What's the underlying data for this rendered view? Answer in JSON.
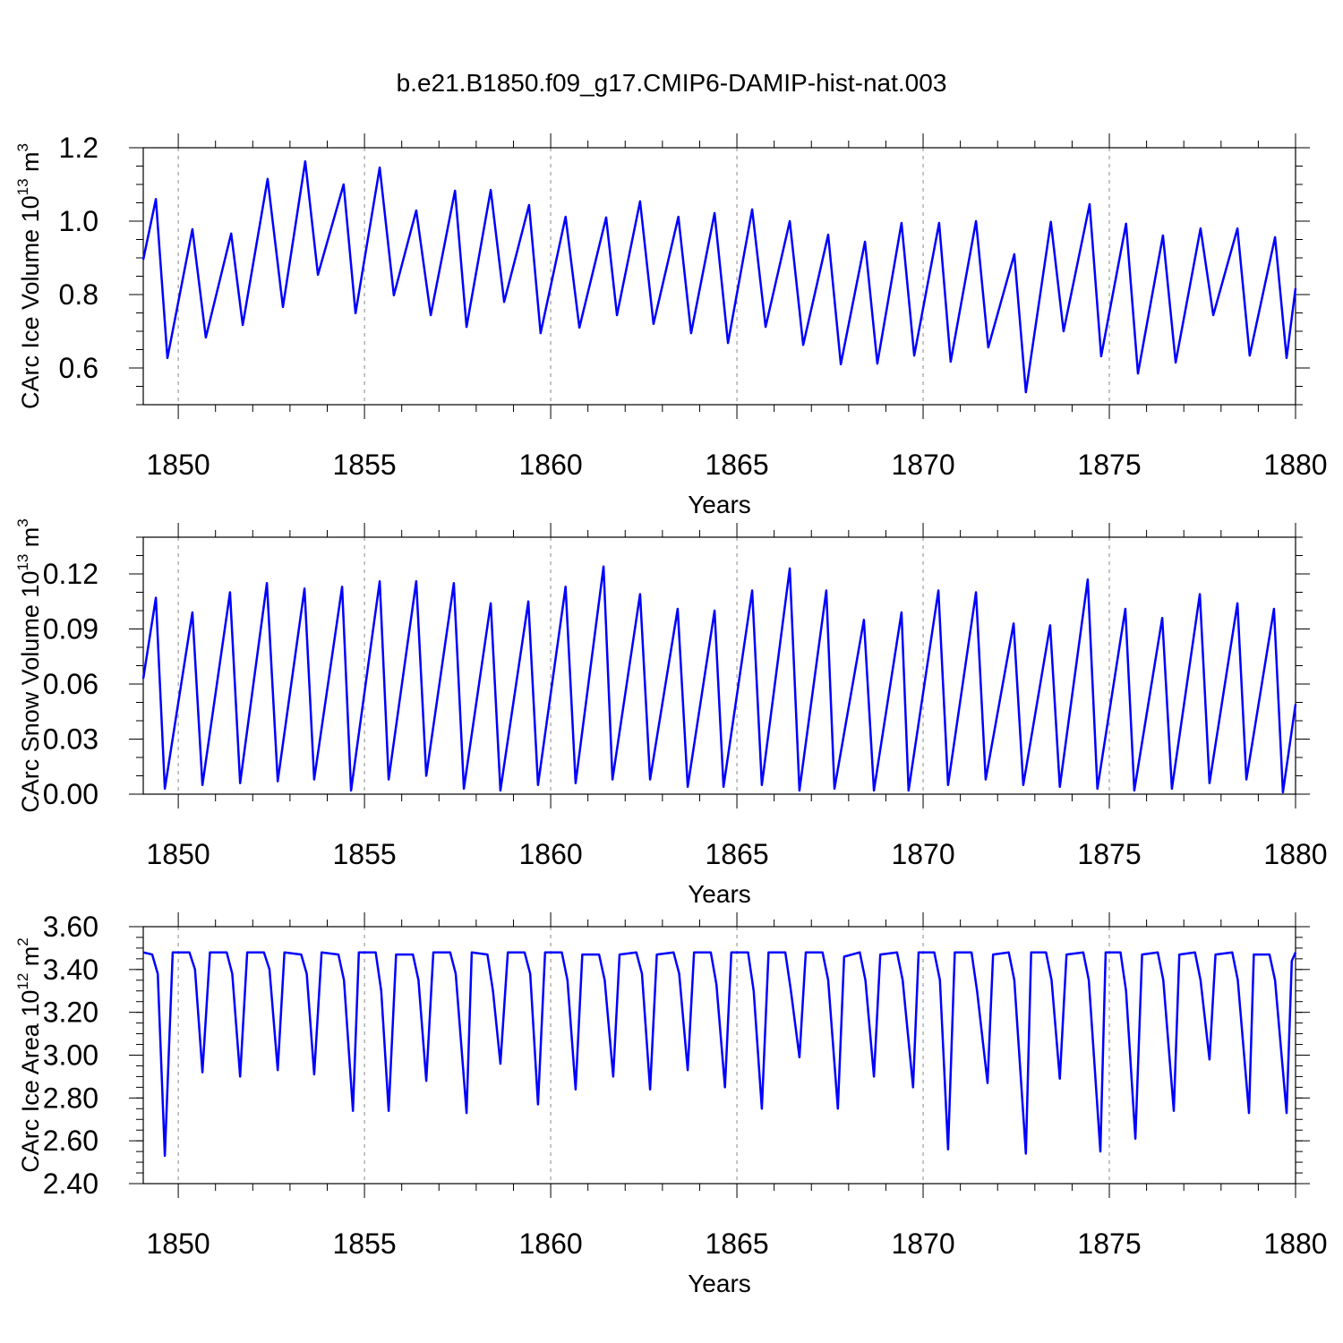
{
  "title": "b.e21.B1850.f09_g17.CMIP6-DAMIP-hist-nat.003",
  "line_color": "#0000ff",
  "chart_data": [
    {
      "type": "line",
      "name": "ice-volume",
      "ylabel_parts": [
        [
          "CArc Ice Volume 10",
          false
        ],
        [
          "13",
          true
        ],
        [
          " m",
          false
        ],
        [
          "3",
          true
        ]
      ],
      "xlabel": "Years",
      "xlim": [
        1849.06,
        1880
      ],
      "ylim": [
        0.5,
        1.2
      ],
      "xticks": [
        1850,
        1855,
        1860,
        1865,
        1870,
        1875,
        1880
      ],
      "xtick_labels": [
        "1850",
        "1855",
        "1860",
        "1865",
        "1870",
        "1875",
        "1880"
      ],
      "yticks": [
        0.6,
        0.8,
        1.0,
        1.2
      ],
      "ytick_labels": [
        "0.6",
        "0.8",
        "1.0",
        "1.2"
      ],
      "yminor": 0.05,
      "points": [
        [
          1849.06,
          0.895
        ],
        [
          1849.4,
          1.06
        ],
        [
          1849.71,
          0.627
        ],
        [
          1850.38,
          0.978
        ],
        [
          1850.74,
          0.683
        ],
        [
          1851.42,
          0.966
        ],
        [
          1851.73,
          0.717
        ],
        [
          1852.4,
          1.115
        ],
        [
          1852.81,
          0.766
        ],
        [
          1853.41,
          1.163
        ],
        [
          1853.75,
          0.854
        ],
        [
          1854.44,
          1.1
        ],
        [
          1854.76,
          0.749
        ],
        [
          1855.41,
          1.146
        ],
        [
          1855.79,
          0.798
        ],
        [
          1856.39,
          1.029
        ],
        [
          1856.78,
          0.744
        ],
        [
          1857.43,
          1.083
        ],
        [
          1857.74,
          0.712
        ],
        [
          1858.39,
          1.085
        ],
        [
          1858.75,
          0.78
        ],
        [
          1859.42,
          1.044
        ],
        [
          1859.73,
          0.695
        ],
        [
          1860.4,
          1.012
        ],
        [
          1860.77,
          0.71
        ],
        [
          1861.49,
          1.01
        ],
        [
          1861.78,
          0.744
        ],
        [
          1862.4,
          1.054
        ],
        [
          1862.76,
          0.72
        ],
        [
          1863.43,
          1.012
        ],
        [
          1863.77,
          0.695
        ],
        [
          1864.4,
          1.022
        ],
        [
          1864.76,
          0.668
        ],
        [
          1865.41,
          1.032
        ],
        [
          1865.77,
          0.712
        ],
        [
          1866.42,
          1.0
        ],
        [
          1866.78,
          0.663
        ],
        [
          1867.45,
          0.963
        ],
        [
          1867.79,
          0.61
        ],
        [
          1868.44,
          0.944
        ],
        [
          1868.77,
          0.612
        ],
        [
          1869.42,
          0.995
        ],
        [
          1869.76,
          0.634
        ],
        [
          1870.43,
          0.995
        ],
        [
          1870.74,
          0.617
        ],
        [
          1871.42,
          1.0
        ],
        [
          1871.75,
          0.656
        ],
        [
          1872.45,
          0.91
        ],
        [
          1872.76,
          0.534
        ],
        [
          1873.43,
          0.998
        ],
        [
          1873.77,
          0.7
        ],
        [
          1874.47,
          1.046
        ],
        [
          1874.78,
          0.632
        ],
        [
          1875.45,
          0.993
        ],
        [
          1875.77,
          0.585
        ],
        [
          1876.44,
          0.961
        ],
        [
          1876.78,
          0.615
        ],
        [
          1877.45,
          0.98
        ],
        [
          1877.79,
          0.744
        ],
        [
          1878.44,
          0.98
        ],
        [
          1878.77,
          0.634
        ],
        [
          1879.45,
          0.956
        ],
        [
          1879.76,
          0.627
        ],
        [
          1880.0,
          0.817
        ]
      ]
    },
    {
      "type": "line",
      "name": "snow-volume",
      "ylabel_parts": [
        [
          "CArc Snow Volume 10",
          false
        ],
        [
          "13",
          true
        ],
        [
          " m",
          false
        ],
        [
          "3",
          true
        ]
      ],
      "xlabel": "Years",
      "xlim": [
        1849.06,
        1880
      ],
      "ylim": [
        0.0,
        0.14
      ],
      "xticks": [
        1850,
        1855,
        1860,
        1865,
        1870,
        1875,
        1880
      ],
      "xtick_labels": [
        "1850",
        "1855",
        "1860",
        "1865",
        "1870",
        "1875",
        "1880"
      ],
      "yticks": [
        0.0,
        0.03,
        0.06,
        0.09,
        0.12
      ],
      "ytick_labels": [
        "0.00",
        "0.03",
        "0.06",
        "0.09",
        "0.12"
      ],
      "yminor": 0.01,
      "points": [
        [
          1849.06,
          0.063
        ],
        [
          1849.4,
          0.107
        ],
        [
          1849.64,
          0.003
        ],
        [
          1850.38,
          0.099
        ],
        [
          1850.65,
          0.005
        ],
        [
          1851.39,
          0.11
        ],
        [
          1851.66,
          0.006
        ],
        [
          1852.38,
          0.115
        ],
        [
          1852.67,
          0.007
        ],
        [
          1853.39,
          0.112
        ],
        [
          1853.65,
          0.008
        ],
        [
          1854.4,
          0.113
        ],
        [
          1854.64,
          0.002
        ],
        [
          1855.41,
          0.116
        ],
        [
          1855.65,
          0.008
        ],
        [
          1856.39,
          0.116
        ],
        [
          1856.66,
          0.01
        ],
        [
          1857.4,
          0.115
        ],
        [
          1857.67,
          0.003
        ],
        [
          1858.39,
          0.104
        ],
        [
          1858.65,
          0.002
        ],
        [
          1859.4,
          0.105
        ],
        [
          1859.66,
          0.005
        ],
        [
          1860.4,
          0.113
        ],
        [
          1860.67,
          0.006
        ],
        [
          1861.42,
          0.124
        ],
        [
          1861.66,
          0.008
        ],
        [
          1862.4,
          0.109
        ],
        [
          1862.67,
          0.008
        ],
        [
          1863.41,
          0.101
        ],
        [
          1863.68,
          0.004
        ],
        [
          1864.4,
          0.1
        ],
        [
          1864.64,
          0.004
        ],
        [
          1865.41,
          0.111
        ],
        [
          1865.67,
          0.005
        ],
        [
          1866.42,
          0.123
        ],
        [
          1866.68,
          0.002
        ],
        [
          1867.4,
          0.111
        ],
        [
          1867.62,
          0.003
        ],
        [
          1868.41,
          0.095
        ],
        [
          1868.68,
          0.002
        ],
        [
          1869.42,
          0.099
        ],
        [
          1869.61,
          0.002
        ],
        [
          1870.41,
          0.111
        ],
        [
          1870.67,
          0.005
        ],
        [
          1871.42,
          0.11
        ],
        [
          1871.68,
          0.008
        ],
        [
          1872.43,
          0.093
        ],
        [
          1872.69,
          0.005
        ],
        [
          1873.41,
          0.092
        ],
        [
          1873.67,
          0.004
        ],
        [
          1874.42,
          0.117
        ],
        [
          1874.68,
          0.003
        ],
        [
          1875.43,
          0.101
        ],
        [
          1875.67,
          0.002
        ],
        [
          1876.42,
          0.096
        ],
        [
          1876.68,
          0.003
        ],
        [
          1877.43,
          0.109
        ],
        [
          1877.69,
          0.006
        ],
        [
          1878.44,
          0.104
        ],
        [
          1878.68,
          0.008
        ],
        [
          1879.42,
          0.101
        ],
        [
          1879.66,
          0.001
        ],
        [
          1880.0,
          0.049
        ]
      ]
    },
    {
      "type": "line",
      "name": "ice-area",
      "ylabel_parts": [
        [
          "CArc Ice Area 10",
          false
        ],
        [
          "12",
          true
        ],
        [
          " m",
          false
        ],
        [
          "2",
          true
        ]
      ],
      "xlabel": "Years",
      "xlim": [
        1849.06,
        1880
      ],
      "ylim": [
        2.4,
        3.6
      ],
      "xticks": [
        1850,
        1855,
        1860,
        1865,
        1870,
        1875,
        1880
      ],
      "xtick_labels": [
        "1850",
        "1855",
        "1860",
        "1865",
        "1870",
        "1875",
        "1880"
      ],
      "yticks": [
        2.4,
        2.6,
        2.8,
        3.0,
        3.2,
        3.4,
        3.6
      ],
      "ytick_labels": [
        "2.40",
        "2.60",
        "2.80",
        "3.00",
        "3.20",
        "3.40",
        "3.60"
      ],
      "yminor": 0.05,
      "points": [
        [
          1849.06,
          3.48
        ],
        [
          1849.3,
          3.47
        ],
        [
          1849.45,
          3.38
        ],
        [
          1849.64,
          2.53
        ],
        [
          1849.85,
          3.48
        ],
        [
          1850.3,
          3.48
        ],
        [
          1850.45,
          3.4
        ],
        [
          1850.65,
          2.92
        ],
        [
          1850.85,
          3.48
        ],
        [
          1851.3,
          3.48
        ],
        [
          1851.45,
          3.38
        ],
        [
          1851.66,
          2.9
        ],
        [
          1851.85,
          3.48
        ],
        [
          1852.3,
          3.48
        ],
        [
          1852.45,
          3.4
        ],
        [
          1852.67,
          2.93
        ],
        [
          1852.85,
          3.48
        ],
        [
          1853.3,
          3.47
        ],
        [
          1853.45,
          3.38
        ],
        [
          1853.65,
          2.91
        ],
        [
          1853.85,
          3.48
        ],
        [
          1854.3,
          3.47
        ],
        [
          1854.45,
          3.35
        ],
        [
          1854.69,
          2.74
        ],
        [
          1854.85,
          3.48
        ],
        [
          1855.3,
          3.48
        ],
        [
          1855.45,
          3.3
        ],
        [
          1855.65,
          2.74
        ],
        [
          1855.85,
          3.47
        ],
        [
          1856.3,
          3.47
        ],
        [
          1856.45,
          3.35
        ],
        [
          1856.66,
          2.88
        ],
        [
          1856.85,
          3.48
        ],
        [
          1857.3,
          3.48
        ],
        [
          1857.45,
          3.38
        ],
        [
          1857.74,
          2.73
        ],
        [
          1857.88,
          3.48
        ],
        [
          1858.3,
          3.47
        ],
        [
          1858.45,
          3.3
        ],
        [
          1858.65,
          2.96
        ],
        [
          1858.85,
          3.48
        ],
        [
          1859.3,
          3.48
        ],
        [
          1859.45,
          3.38
        ],
        [
          1859.66,
          2.77
        ],
        [
          1859.85,
          3.48
        ],
        [
          1860.3,
          3.48
        ],
        [
          1860.45,
          3.35
        ],
        [
          1860.67,
          2.84
        ],
        [
          1860.85,
          3.47
        ],
        [
          1861.3,
          3.47
        ],
        [
          1861.45,
          3.35
        ],
        [
          1861.68,
          2.9
        ],
        [
          1861.85,
          3.47
        ],
        [
          1862.3,
          3.48
        ],
        [
          1862.45,
          3.38
        ],
        [
          1862.67,
          2.84
        ],
        [
          1862.85,
          3.47
        ],
        [
          1863.3,
          3.48
        ],
        [
          1863.45,
          3.38
        ],
        [
          1863.68,
          2.93
        ],
        [
          1863.85,
          3.48
        ],
        [
          1864.3,
          3.48
        ],
        [
          1864.45,
          3.33
        ],
        [
          1864.68,
          2.85
        ],
        [
          1864.85,
          3.48
        ],
        [
          1865.3,
          3.48
        ],
        [
          1865.45,
          3.3
        ],
        [
          1865.67,
          2.75
        ],
        [
          1865.85,
          3.48
        ],
        [
          1866.3,
          3.48
        ],
        [
          1866.45,
          3.3
        ],
        [
          1866.68,
          2.99
        ],
        [
          1866.85,
          3.48
        ],
        [
          1867.3,
          3.48
        ],
        [
          1867.45,
          3.35
        ],
        [
          1867.71,
          2.75
        ],
        [
          1867.88,
          3.46
        ],
        [
          1868.3,
          3.48
        ],
        [
          1868.45,
          3.35
        ],
        [
          1868.68,
          2.9
        ],
        [
          1868.85,
          3.47
        ],
        [
          1869.3,
          3.48
        ],
        [
          1869.45,
          3.35
        ],
        [
          1869.73,
          2.85
        ],
        [
          1869.88,
          3.48
        ],
        [
          1870.3,
          3.48
        ],
        [
          1870.45,
          3.35
        ],
        [
          1870.67,
          2.56
        ],
        [
          1870.85,
          3.48
        ],
        [
          1871.3,
          3.48
        ],
        [
          1871.45,
          3.3
        ],
        [
          1871.73,
          2.87
        ],
        [
          1871.88,
          3.47
        ],
        [
          1872.3,
          3.48
        ],
        [
          1872.45,
          3.35
        ],
        [
          1872.76,
          2.54
        ],
        [
          1872.9,
          3.48
        ],
        [
          1873.3,
          3.48
        ],
        [
          1873.45,
          3.35
        ],
        [
          1873.67,
          2.89
        ],
        [
          1873.85,
          3.47
        ],
        [
          1874.3,
          3.48
        ],
        [
          1874.45,
          3.35
        ],
        [
          1874.76,
          2.55
        ],
        [
          1874.9,
          3.48
        ],
        [
          1875.3,
          3.48
        ],
        [
          1875.45,
          3.3
        ],
        [
          1875.7,
          2.61
        ],
        [
          1875.88,
          3.47
        ],
        [
          1876.3,
          3.48
        ],
        [
          1876.45,
          3.35
        ],
        [
          1876.73,
          2.74
        ],
        [
          1876.88,
          3.47
        ],
        [
          1877.3,
          3.48
        ],
        [
          1877.45,
          3.35
        ],
        [
          1877.69,
          2.98
        ],
        [
          1877.85,
          3.47
        ],
        [
          1878.3,
          3.48
        ],
        [
          1878.45,
          3.35
        ],
        [
          1878.75,
          2.73
        ],
        [
          1878.88,
          3.47
        ],
        [
          1879.3,
          3.47
        ],
        [
          1879.45,
          3.35
        ],
        [
          1879.76,
          2.73
        ],
        [
          1879.9,
          3.44
        ],
        [
          1880.0,
          3.48
        ]
      ]
    }
  ]
}
